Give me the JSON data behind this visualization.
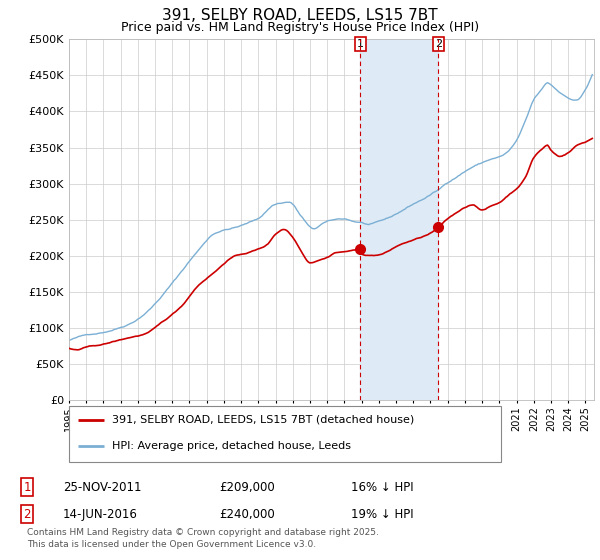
{
  "title_line1": "391, SELBY ROAD, LEEDS, LS15 7BT",
  "title_line2": "Price paid vs. HM Land Registry's House Price Index (HPI)",
  "legend_red": "391, SELBY ROAD, LEEDS, LS15 7BT (detached house)",
  "legend_blue": "HPI: Average price, detached house, Leeds",
  "annotation1_date": "25-NOV-2011",
  "annotation1_price": "£209,000",
  "annotation1_hpi": "16% ↓ HPI",
  "annotation2_date": "14-JUN-2016",
  "annotation2_price": "£240,000",
  "annotation2_hpi": "19% ↓ HPI",
  "footer": "Contains HM Land Registry data © Crown copyright and database right 2025.\nThis data is licensed under the Open Government Licence v3.0.",
  "red_color": "#cc0000",
  "blue_color": "#7bafd4",
  "span_color": "#deeaf5",
  "grid_color": "#cccccc",
  "marker1_year": 2011.92,
  "marker2_year": 2016.45,
  "marker1_value": 209000,
  "marker2_value": 240000,
  "xmin": 1995,
  "xmax": 2025.5,
  "ymin": 0,
  "ymax": 500000,
  "yticks": [
    0,
    50000,
    100000,
    150000,
    200000,
    250000,
    300000,
    350000,
    400000,
    450000,
    500000
  ]
}
